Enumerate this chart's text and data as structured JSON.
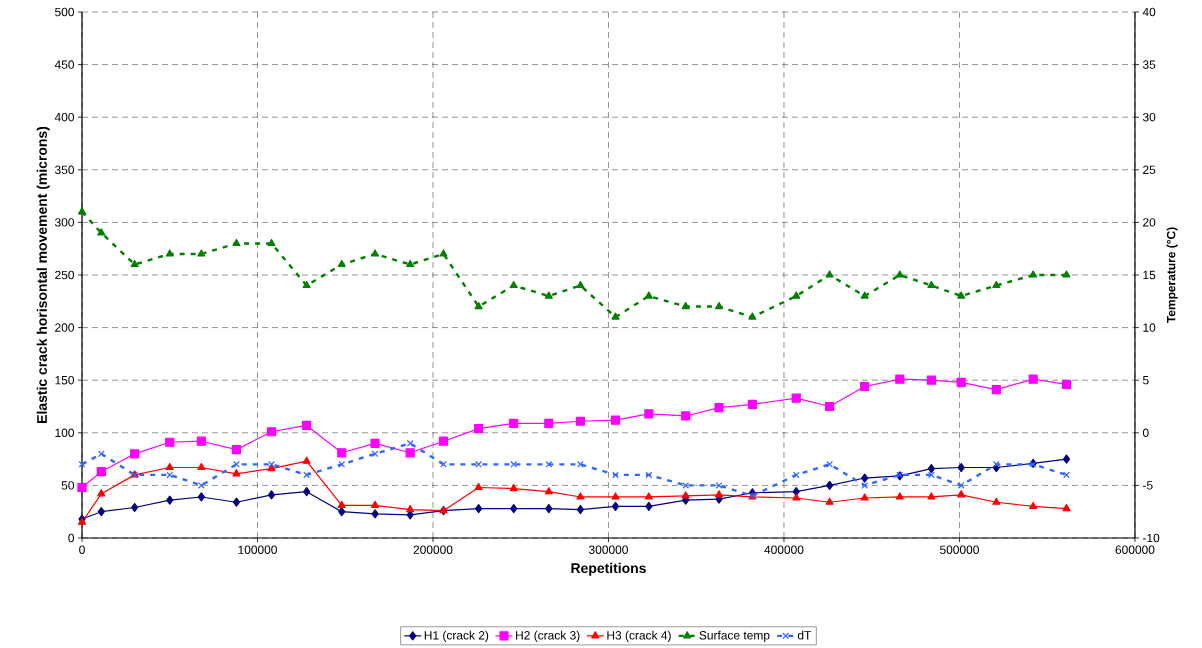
{
  "chart_data": {
    "type": "line",
    "xlabel": "Repetitions",
    "ylabel": "Elastic crack horisontal movement (microns)",
    "y2label": "Temperature (°C)",
    "x": [
      0,
      11000,
      30000,
      50000,
      68000,
      88000,
      108000,
      128000,
      148000,
      167000,
      187000,
      206000,
      226000,
      246000,
      266000,
      284000,
      304000,
      323000,
      344000,
      363000,
      382000,
      407000,
      426000,
      446000,
      466000,
      484000,
      501000,
      521000,
      542000,
      561000
    ],
    "xlim": [
      0,
      600000
    ],
    "xticks": [
      0,
      100000,
      200000,
      300000,
      400000,
      500000,
      600000
    ],
    "ylim": [
      0,
      500
    ],
    "yticks": [
      0,
      50,
      100,
      150,
      200,
      250,
      300,
      350,
      400,
      450,
      500
    ],
    "y2lim": [
      -10,
      40
    ],
    "y2ticks": [
      -10,
      -5,
      0,
      5,
      10,
      15,
      20,
      25,
      30,
      35,
      40
    ],
    "grid": true,
    "legend": "bottom",
    "series": [
      {
        "name": "H1 (crack 2)",
        "color": "#000080",
        "marker": "diamond",
        "line_style": "solid",
        "values": [
          18,
          25,
          29,
          36,
          39,
          34,
          41,
          44,
          25,
          23,
          22,
          26,
          28,
          28,
          28,
          27,
          30,
          30,
          36,
          37,
          43,
          44,
          50,
          57,
          59,
          66,
          67,
          67,
          71,
          75
        ]
      },
      {
        "name": "H2 (crack 3)",
        "color": "#ff00ff",
        "marker": "square",
        "line_style": "solid",
        "values": [
          48,
          63,
          80,
          91,
          92,
          84,
          101,
          107,
          81,
          90,
          81,
          92,
          104,
          109,
          109,
          111,
          112,
          118,
          116,
          124,
          127,
          133,
          125,
          144,
          151,
          150,
          148,
          141,
          151,
          146
        ]
      },
      {
        "name": "H3 (crack 4)",
        "color": "#ff0000",
        "marker": "triangle",
        "line_style": "solid",
        "values": [
          15,
          42,
          60,
          67,
          67,
          61,
          66,
          73,
          31,
          31,
          27,
          26,
          48,
          47,
          44,
          39,
          39,
          39,
          40,
          41,
          39,
          38,
          34,
          38,
          39,
          39,
          41,
          34,
          30,
          28
        ]
      },
      {
        "name": "Surface temp",
        "color": "#008000",
        "marker": "triangle",
        "line_style": "dashed",
        "axis": "y2",
        "values": [
          21,
          19,
          16,
          17,
          17,
          18,
          18,
          14,
          16,
          17,
          16,
          17,
          12,
          14,
          13,
          14,
          11,
          13,
          12,
          12,
          11,
          13,
          15,
          13,
          15,
          14,
          13,
          14,
          15,
          15
        ]
      },
      {
        "name": "dT",
        "color": "#3366ff",
        "marker": "cross",
        "line_style": "dashed",
        "axis": "y2",
        "values": [
          -3,
          -2,
          -4,
          -4,
          -5,
          -3,
          -3,
          -4,
          -3,
          -2,
          -1,
          -3,
          -3,
          -3,
          -3,
          -3,
          -4,
          -4,
          -5,
          -5,
          -6,
          -4,
          -3,
          -5,
          -4,
          -4,
          -5,
          -3,
          -3,
          -4
        ]
      }
    ]
  }
}
